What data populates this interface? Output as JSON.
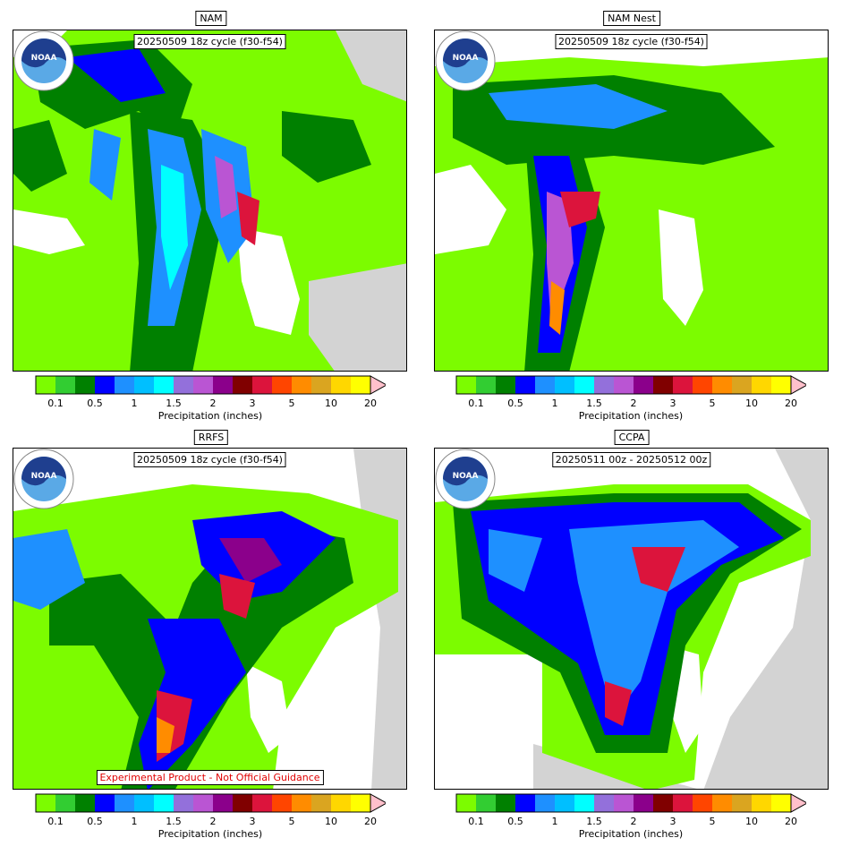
{
  "panels": [
    {
      "title": "NAM",
      "cycle": "20250509 18z cycle (f30-f54)",
      "footer": ""
    },
    {
      "title": "NAM Nest",
      "cycle": "20250509 18z cycle (f30-f54)",
      "footer": ""
    },
    {
      "title": "RRFS",
      "cycle": "20250509 18z cycle (f30-f54)",
      "footer": "Experimental Product - Not Official Guidance"
    },
    {
      "title": "CCPA",
      "cycle": "20250511 00z - 20250512 00z",
      "footer": ""
    }
  ],
  "colorbar": {
    "label": "Precipitation (inches)",
    "ticks": [
      "0.1",
      "0.5",
      "1",
      "1.5",
      "2",
      "3",
      "5",
      "10",
      "20"
    ],
    "colors": [
      "#7cfc00",
      "#32cd32",
      "#008000",
      "#0000ff",
      "#1e90ff",
      "#00bfff",
      "#00ffff",
      "#9370db",
      "#ba55d3",
      "#8b008b",
      "#800000",
      "#dc143c",
      "#ff4500",
      "#ff8c00",
      "#daa520",
      "#ffd700",
      "#ffff00"
    ],
    "extend_color": "#ffc0cb"
  },
  "map_colors": {
    "land_no_data": "#d3d3d3",
    "water": "#ffffff"
  },
  "logo": {
    "icon": "noaa-logo-icon",
    "text": "NOAA"
  }
}
